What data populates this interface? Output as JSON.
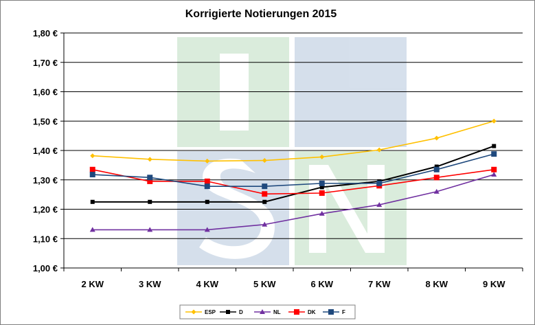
{
  "chart_data": {
    "type": "line",
    "title": "Korrigierte Notierungen 2015",
    "xlabel": "",
    "ylabel": "",
    "categories": [
      "2 KW",
      "3 KW",
      "4 KW",
      "5 KW",
      "6 KW",
      "7 KW",
      "8 KW",
      "9 KW"
    ],
    "ylim": [
      1.0,
      1.8
    ],
    "y_ticks": [
      "1,00 €",
      "1,10 €",
      "1,20 €",
      "1,30 €",
      "1,40 €",
      "1,50 €",
      "1,60 €",
      "1,70 €",
      "1,80 €"
    ],
    "grid": true,
    "legend_position": "bottom",
    "watermark": "ISN",
    "series": [
      {
        "name": "ESP",
        "color": "#FFC000",
        "marker": "diamond",
        "values": [
          1.382,
          1.37,
          1.364,
          1.366,
          1.378,
          1.402,
          1.442,
          1.5
        ]
      },
      {
        "name": "D",
        "color": "#000000",
        "marker": "square-small",
        "values": [
          1.225,
          1.225,
          1.225,
          1.225,
          1.275,
          1.295,
          1.345,
          1.415
        ]
      },
      {
        "name": "NL",
        "color": "#7030A0",
        "marker": "triangle",
        "values": [
          1.13,
          1.13,
          1.13,
          1.148,
          1.185,
          1.215,
          1.26,
          1.318
        ]
      },
      {
        "name": "DK",
        "color": "#FF0000",
        "marker": "square",
        "values": [
          1.335,
          1.295,
          1.295,
          1.252,
          1.255,
          1.28,
          1.308,
          1.335
        ]
      },
      {
        "name": "F",
        "color": "#1F497D",
        "marker": "square",
        "values": [
          1.318,
          1.308,
          1.278,
          1.278,
          1.288,
          1.288,
          1.335,
          1.388
        ]
      }
    ]
  }
}
